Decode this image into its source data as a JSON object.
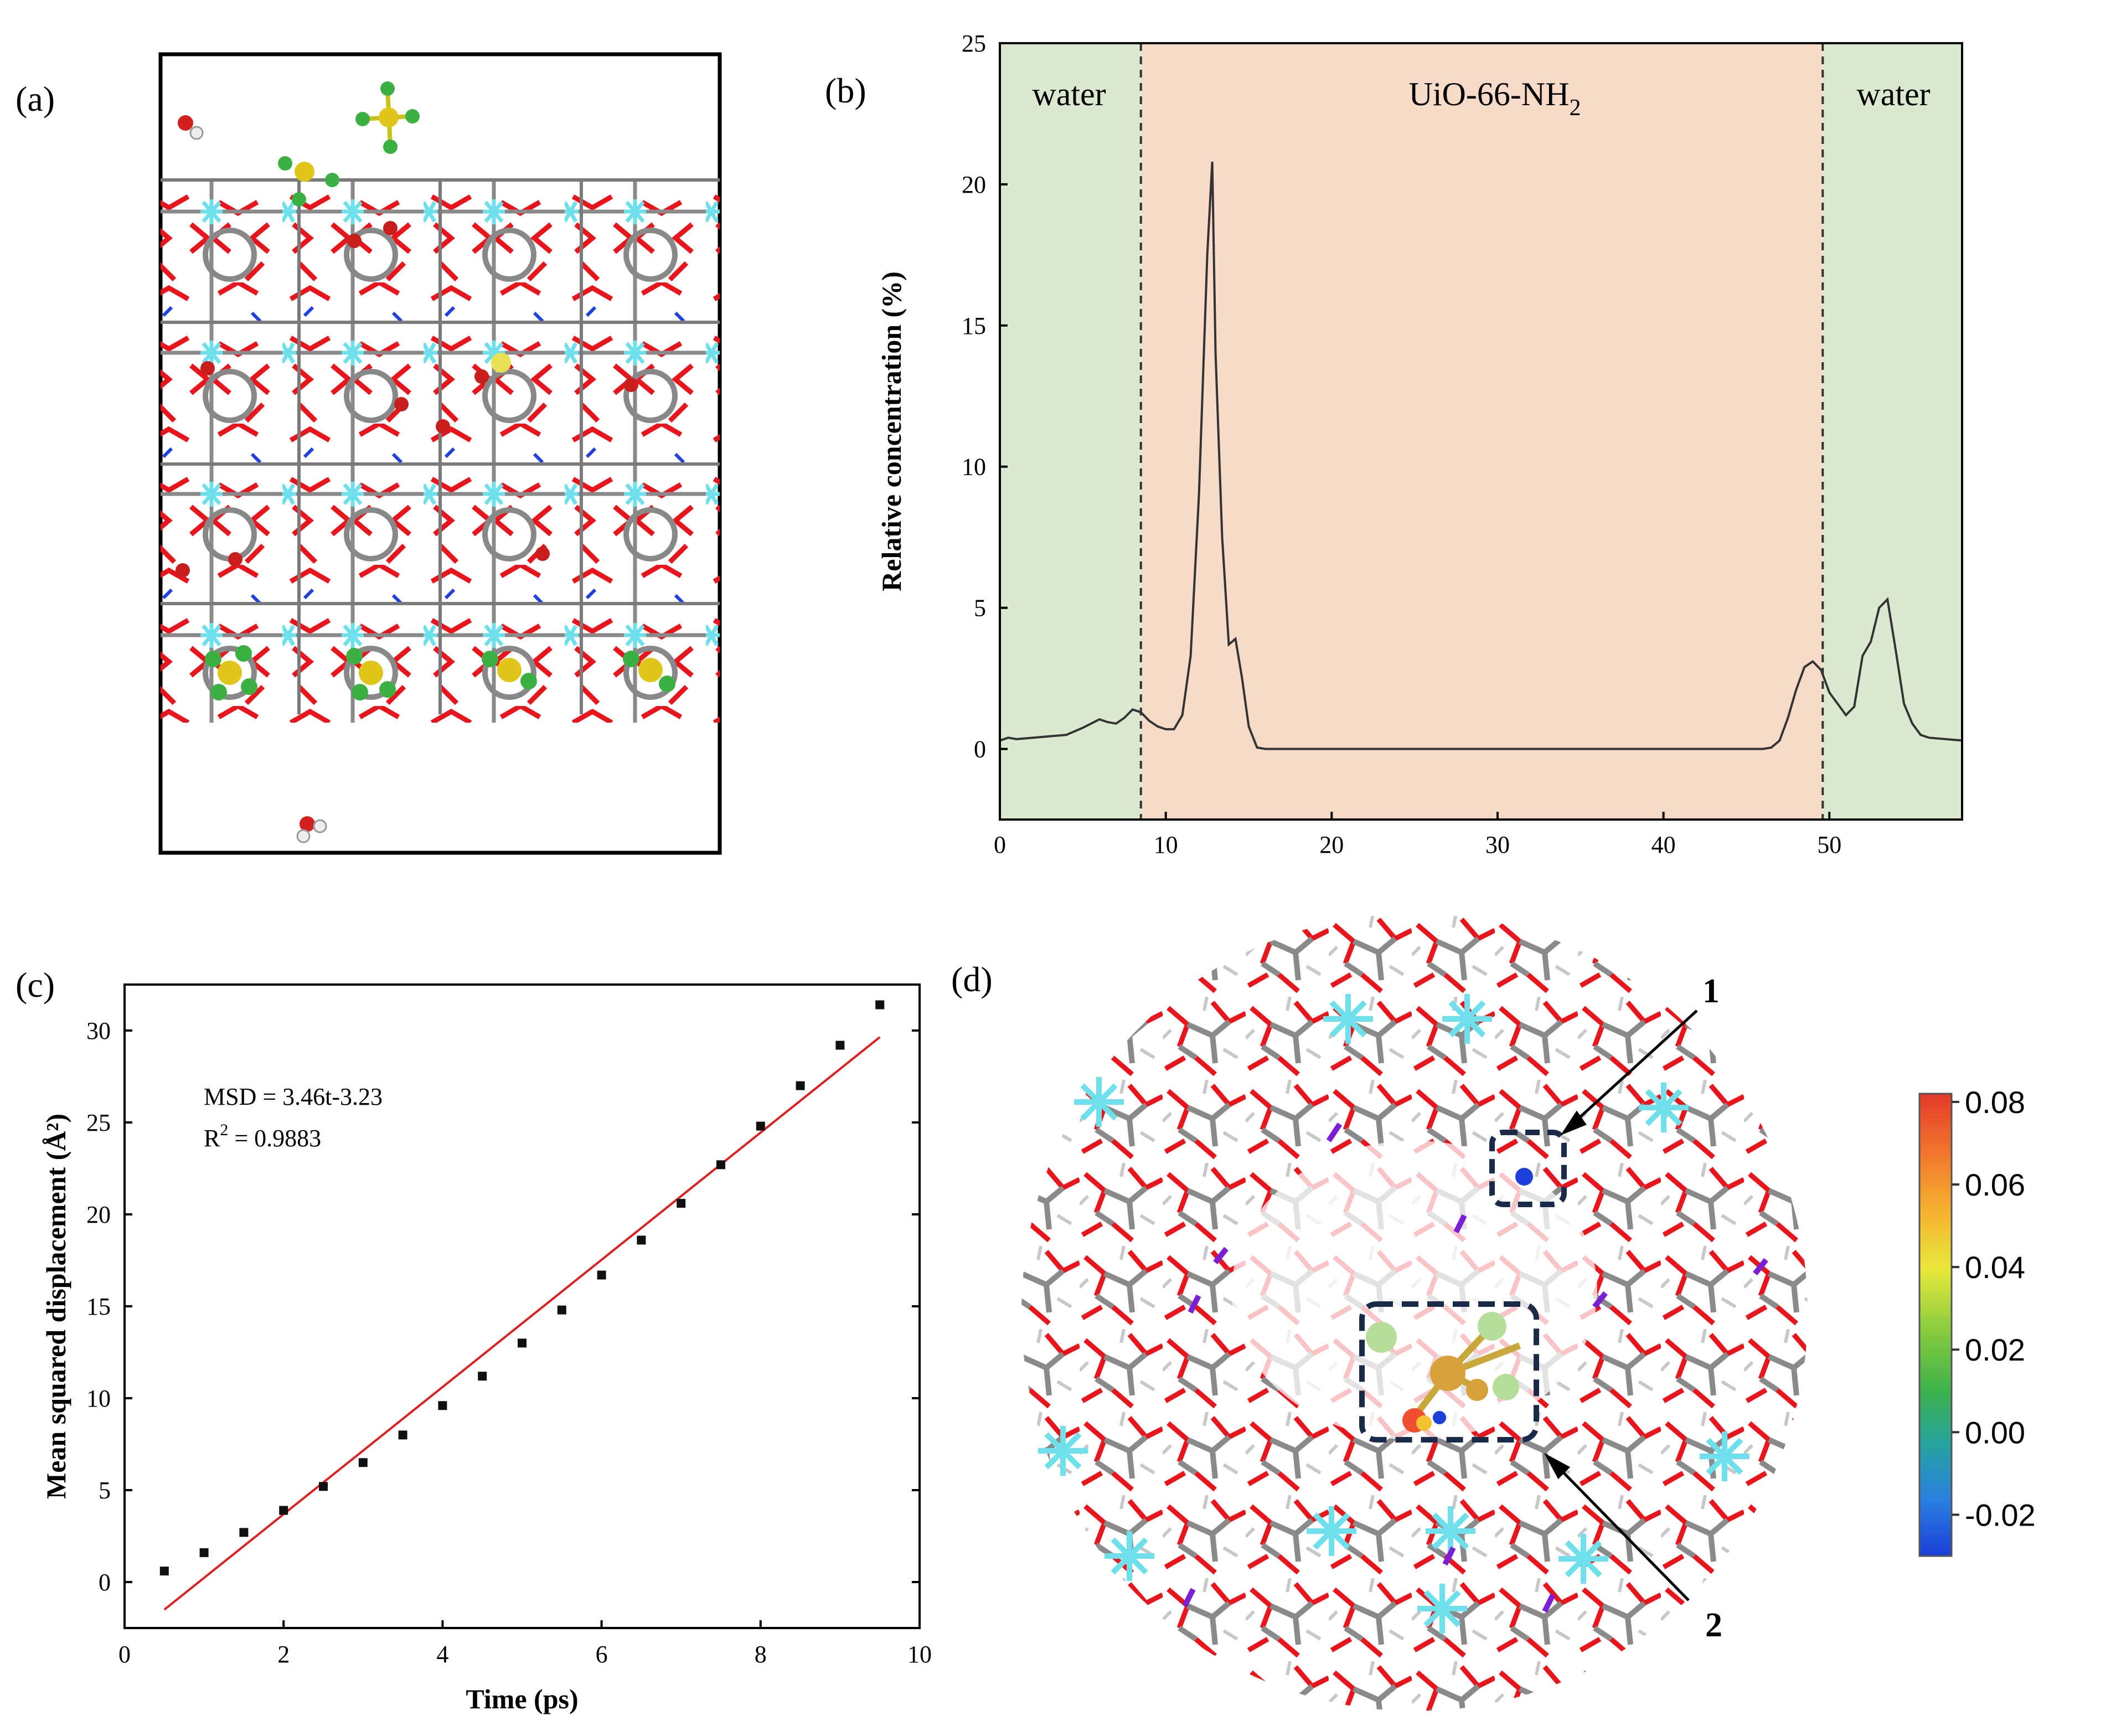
{
  "panels": {
    "a": {
      "label": "(a)"
    },
    "b": {
      "label": "(b)",
      "regions": [
        {
          "label": "water"
        },
        {
          "label": "UiO-66-NH",
          "subscript": "2"
        },
        {
          "label": "water"
        }
      ]
    },
    "c": {
      "label": "(c)",
      "annotation": {
        "equation": "MSD = 3.46t-3.23",
        "r2_prefix": "R",
        "r2_sup": "2",
        "r2_value": " = 0.9883"
      }
    },
    "d": {
      "label": "(d)",
      "arrows": [
        {
          "label": "1"
        },
        {
          "label": "2"
        }
      ]
    }
  },
  "colors": {
    "water_region": "#dbe9cf",
    "mof_region": "#f8dac8",
    "line": "#333333",
    "fit": "#e02020",
    "point": "#111111",
    "oxygen": "#e8161c",
    "zr": "#6ee0ec",
    "carbon": "#8a8a8a",
    "nitrogen": "#7a1fd6",
    "box": "#1c2a4a"
  },
  "chart_data": [
    {
      "id": "b",
      "type": "line",
      "title": "",
      "xlabel": "",
      "ylabel": "Relative concentration (%)",
      "xlim": [
        0,
        58
      ],
      "ylim": [
        -2.5,
        25
      ],
      "xticks": [
        0,
        10,
        20,
        30,
        40,
        50
      ],
      "yticks": [
        0,
        5,
        10,
        15,
        20,
        25
      ],
      "region_boundaries": [
        8.5,
        49.6
      ],
      "series": [
        {
          "name": "concentration",
          "x": [
            0,
            0.5,
            1,
            2,
            3,
            4,
            5,
            5.5,
            6,
            6.5,
            7,
            7.5,
            8,
            8.5,
            9,
            9.5,
            10,
            10.5,
            11,
            11.5,
            12,
            12.5,
            12.8,
            13,
            13.4,
            13.8,
            14.2,
            14.6,
            15,
            15.5,
            16,
            20,
            30,
            40,
            46,
            46.5,
            47,
            47.5,
            48,
            48.5,
            49,
            49.5,
            50,
            50.5,
            51,
            51.5,
            52,
            52.5,
            53,
            53.5,
            54,
            54.5,
            55,
            55.5,
            56,
            57,
            58
          ],
          "y": [
            0.3,
            0.4,
            0.35,
            0.4,
            0.45,
            0.5,
            0.75,
            0.9,
            1.05,
            0.95,
            0.9,
            1.1,
            1.4,
            1.3,
            1.0,
            0.8,
            0.7,
            0.7,
            1.2,
            3.3,
            9.0,
            17.5,
            20.8,
            14.0,
            7.5,
            3.7,
            3.9,
            2.5,
            0.8,
            0.05,
            0.0,
            0.0,
            0.0,
            0.0,
            0.0,
            0.05,
            0.3,
            1.1,
            2.1,
            2.9,
            3.1,
            2.8,
            2.0,
            1.6,
            1.2,
            1.5,
            3.3,
            3.8,
            5.0,
            5.3,
            3.5,
            1.6,
            0.9,
            0.5,
            0.4,
            0.35,
            0.3
          ]
        }
      ]
    },
    {
      "id": "c",
      "type": "scatter",
      "title": "",
      "xlabel": "Time (ps)",
      "ylabel": "Mean squared displacement (Å²)",
      "xlim": [
        0,
        10
      ],
      "ylim": [
        -2.5,
        32.5
      ],
      "xticks": [
        0,
        2,
        4,
        6,
        8,
        10
      ],
      "yticks": [
        0,
        5,
        10,
        15,
        20,
        25,
        30
      ],
      "series": [
        {
          "name": "MSD",
          "x": [
            0.5,
            1.0,
            1.5,
            2.0,
            2.5,
            3.0,
            3.5,
            4.0,
            4.5,
            5.0,
            5.5,
            6.0,
            6.5,
            7.0,
            7.5,
            8.0,
            8.5,
            9.0,
            9.5
          ],
          "y": [
            0.6,
            1.6,
            2.7,
            3.9,
            5.2,
            6.5,
            8.0,
            9.6,
            11.2,
            13.0,
            14.8,
            16.7,
            18.6,
            20.6,
            22.7,
            24.8,
            27.0,
            29.2,
            31.4
          ]
        }
      ],
      "fit": {
        "slope": 3.46,
        "intercept": -3.23,
        "x_range": [
          0.5,
          9.5
        ]
      }
    }
  ],
  "colorbar": {
    "ticks": [
      "0.08",
      "0.06",
      "0.04",
      "0.02",
      "0.00",
      "-0.02"
    ],
    "min": -0.03,
    "max": 0.082
  }
}
